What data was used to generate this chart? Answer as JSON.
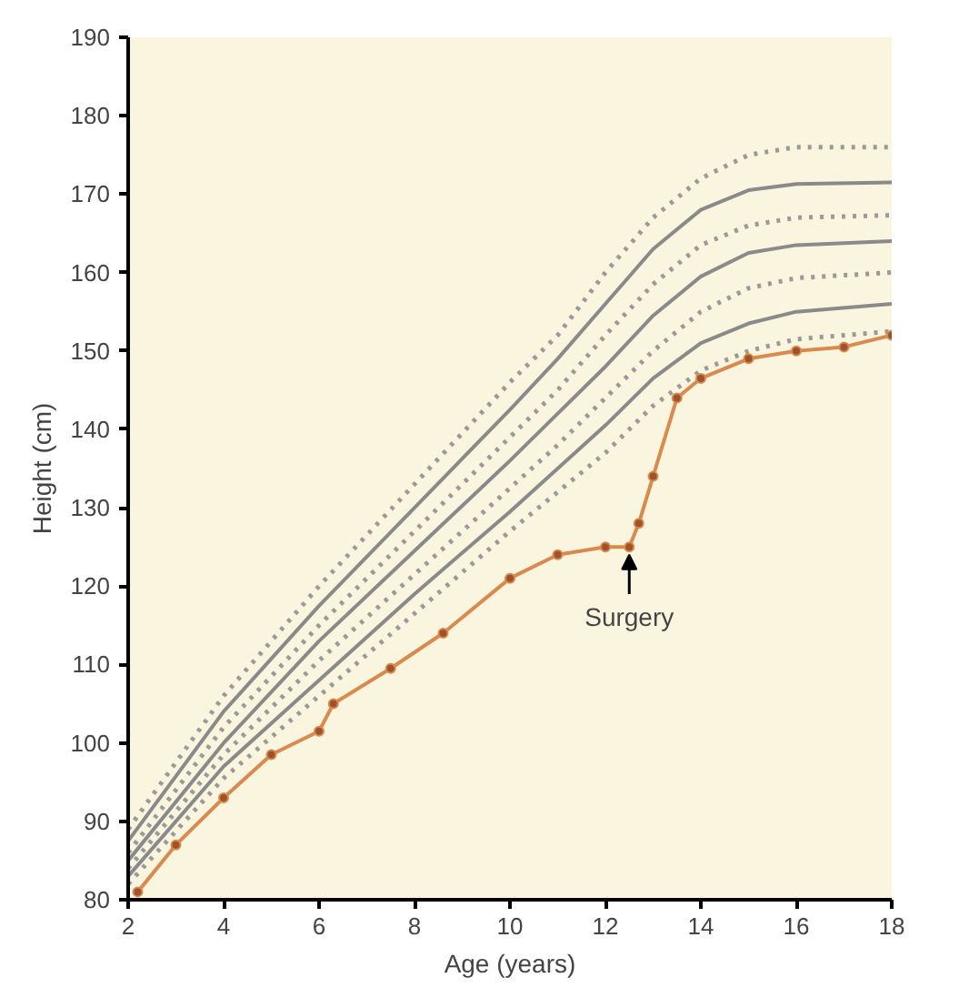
{
  "chart_data": {
    "type": "line",
    "xlabel": "Age (years)",
    "ylabel": "Height (cm)",
    "xlim": [
      2,
      18
    ],
    "ylim": [
      80,
      190
    ],
    "xticks": [
      2,
      4,
      6,
      8,
      10,
      12,
      14,
      16,
      18
    ],
    "yticks": [
      80,
      90,
      100,
      110,
      120,
      130,
      140,
      150,
      160,
      170,
      180,
      190
    ],
    "x": [
      2,
      4,
      6,
      8,
      10,
      11,
      12,
      13,
      14,
      15,
      16,
      18
    ],
    "series": [
      {
        "color": "#9a9a9a",
        "line_style": "dotted",
        "marker": "none",
        "values": [
          89,
          106,
          120,
          133,
          146,
          152,
          160,
          167,
          172,
          175,
          176,
          176
        ]
      },
      {
        "color": "#8a8a8a",
        "line_style": "solid",
        "marker": "none",
        "values": [
          87.5,
          104,
          117.5,
          130,
          142.5,
          149,
          156,
          163,
          168,
          170.5,
          171.3,
          171.5
        ]
      },
      {
        "color": "#9a9a9a",
        "line_style": "dotted",
        "marker": "none",
        "values": [
          86,
          102,
          115,
          127,
          139,
          145,
          152,
          158.5,
          163.5,
          166,
          167,
          167.3
        ]
      },
      {
        "color": "#8a8a8a",
        "line_style": "solid",
        "marker": "none",
        "values": [
          85,
          100,
          113,
          124.5,
          136,
          142,
          148,
          154.5,
          159.5,
          162.5,
          163.5,
          164
        ]
      },
      {
        "color": "#9a9a9a",
        "line_style": "dotted",
        "marker": "none",
        "values": [
          84,
          98.5,
          110.5,
          121.5,
          132.5,
          138,
          144,
          150,
          155,
          158,
          159.3,
          160
        ]
      },
      {
        "color": "#8a8a8a",
        "line_style": "solid",
        "marker": "none",
        "values": [
          83,
          97,
          108,
          119,
          129.5,
          135,
          140.5,
          146.5,
          151,
          153.5,
          155,
          156
        ]
      },
      {
        "color": "#9a9a9a",
        "line_style": "dotted",
        "marker": "none",
        "values": [
          82,
          95.5,
          106,
          116.5,
          127,
          132,
          137,
          143,
          147.5,
          150,
          151.5,
          152.5
        ]
      },
      {
        "color": "#d98a4e",
        "line_style": "solid",
        "marker": "circle",
        "x": [
          2.2,
          3,
          4,
          5,
          6,
          6.3,
          7.5,
          8.6,
          10,
          11,
          12,
          12.5,
          12.7,
          13,
          13.5,
          14,
          15,
          16,
          17,
          18
        ],
        "values": [
          81,
          87,
          93,
          98.5,
          101.5,
          105,
          109.5,
          114,
          121,
          124,
          125,
          125,
          128,
          134,
          144,
          146.5,
          149,
          150,
          150.5,
          152
        ]
      }
    ],
    "annotations": [
      {
        "text": "Surgery",
        "x": 12.5,
        "y": 125
      }
    ]
  }
}
